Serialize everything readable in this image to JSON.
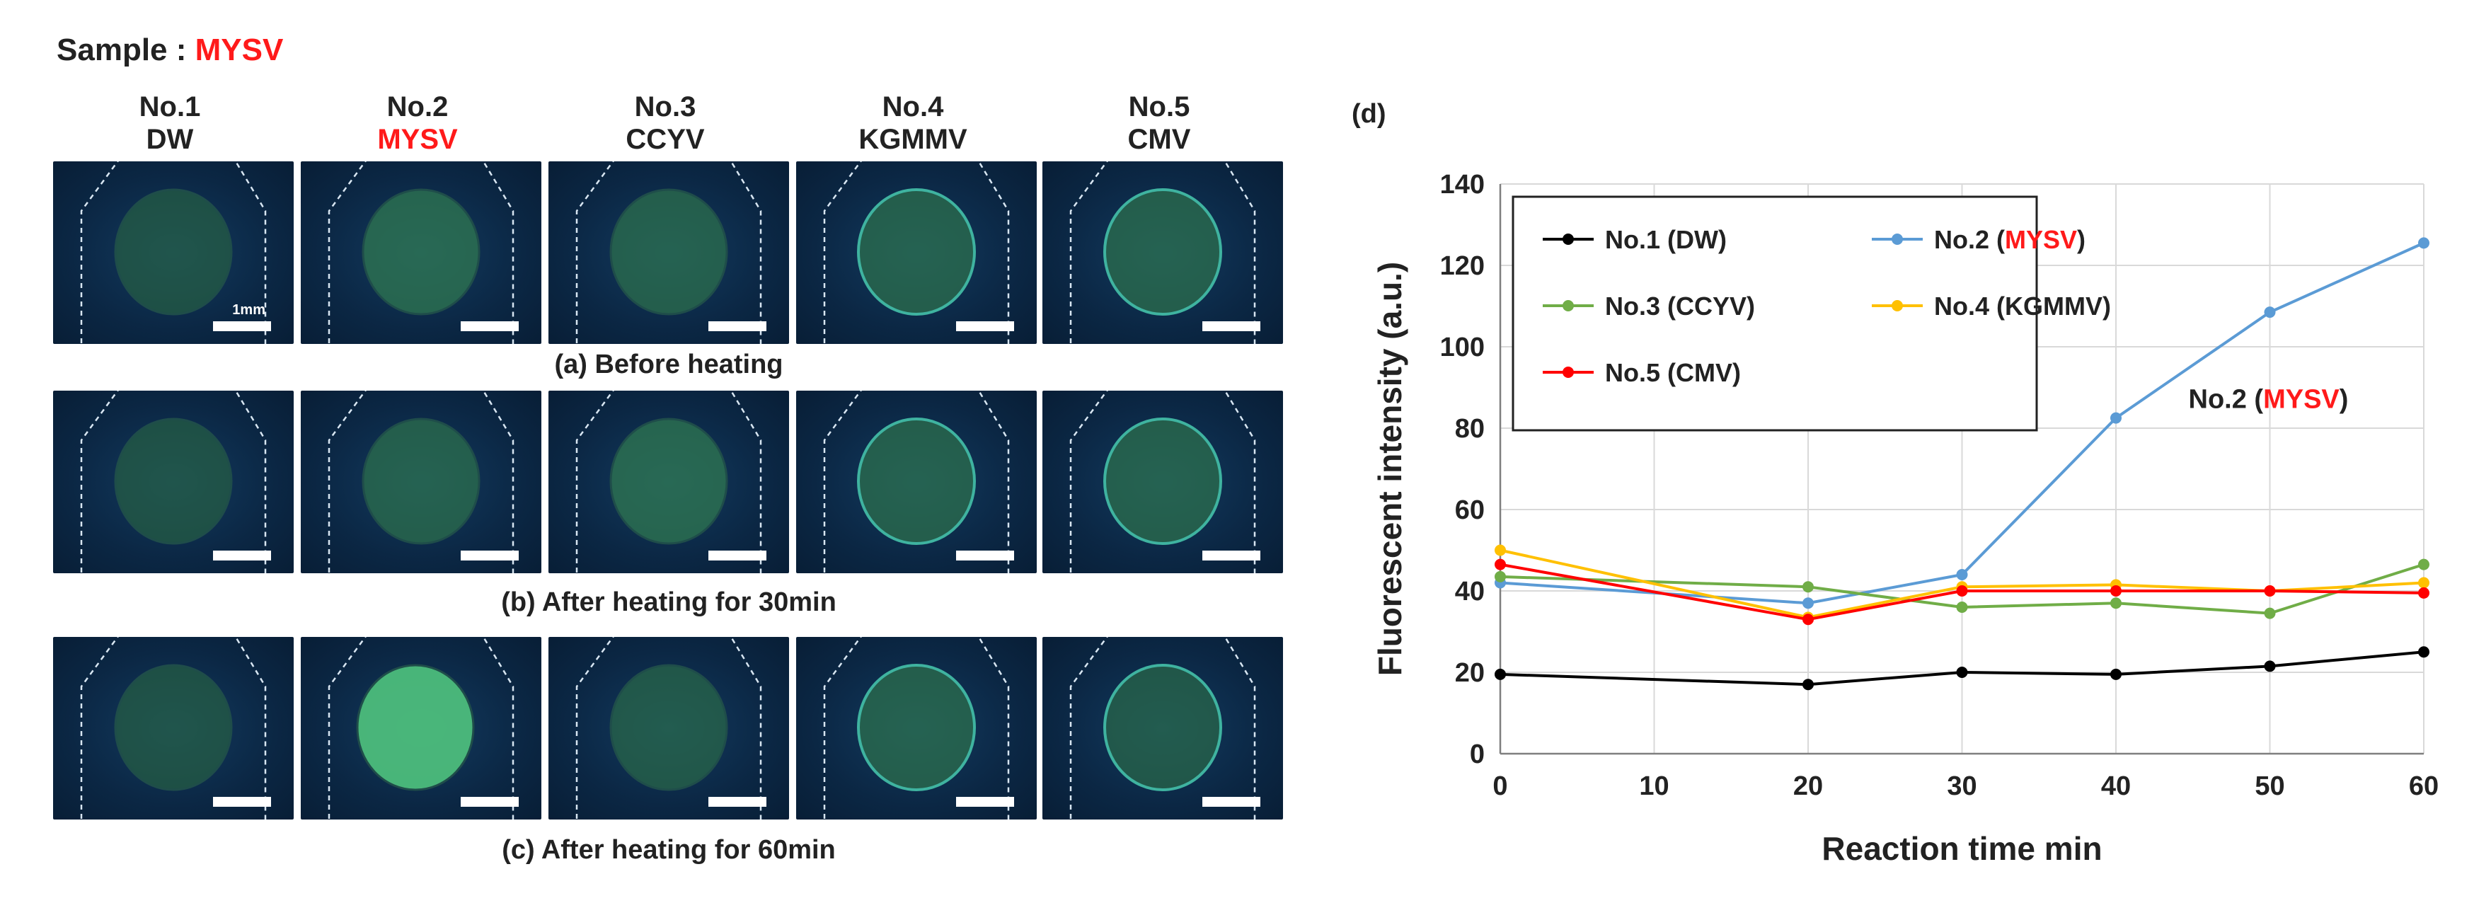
{
  "sample": {
    "label": "Sample : ",
    "value": "MYSV"
  },
  "columns": [
    {
      "no": "No.1",
      "name": "DW",
      "highlight": false
    },
    {
      "no": "No.2",
      "name": "MYSV",
      "highlight": true
    },
    {
      "no": "No.3",
      "name": "CCYV",
      "highlight": false
    },
    {
      "no": "No.4",
      "name": "KGMMV",
      "highlight": false
    },
    {
      "no": "No.5",
      "name": "CMV",
      "highlight": false
    }
  ],
  "scale_label": "1mm",
  "rows": [
    {
      "caption": "(a) Before heating",
      "brightness": [
        0.35,
        0.5,
        0.45,
        0.45,
        0.45
      ]
    },
    {
      "caption": "(b) After heating for 30min",
      "brightness": [
        0.35,
        0.45,
        0.5,
        0.45,
        0.45
      ]
    },
    {
      "caption": "(c) After heating for 60min",
      "brightness": [
        0.35,
        0.95,
        0.4,
        0.45,
        0.4
      ]
    }
  ],
  "panel_label": "(d)",
  "colors": {
    "accent_red": "#ff1a1a",
    "tile_bg": "#0b2744",
    "spot_green": "#3fae7a"
  },
  "chart_data": {
    "type": "line",
    "xlabel": "Reaction time  min",
    "ylabel": "Fluorescent intensity  (a.u.)",
    "xlim": [
      0,
      60
    ],
    "ylim": [
      0,
      140
    ],
    "xticks": [
      0,
      10,
      20,
      30,
      40,
      50,
      60
    ],
    "yticks": [
      0,
      20,
      40,
      60,
      80,
      100,
      120,
      140
    ],
    "grid": true,
    "legend_position": "top-left",
    "x": [
      0,
      20,
      30,
      40,
      50,
      60
    ],
    "series": [
      {
        "name": "No.1 (DW)",
        "label_prefix": "No.1 (",
        "label_virus": "DW",
        "label_suffix": ")",
        "highlight": false,
        "color": "#000000",
        "values": [
          19.5,
          17,
          20,
          19.5,
          21.5,
          25
        ]
      },
      {
        "name": "No.2 (MYSV)",
        "label_prefix": "No.2 (",
        "label_virus": "MYSV",
        "label_suffix": ")",
        "highlight": true,
        "color": "#5b9bd5",
        "values": [
          42,
          37,
          44,
          82.5,
          108.5,
          125.5
        ]
      },
      {
        "name": "No.3 (CCYV)",
        "label_prefix": "No.3 (",
        "label_virus": "CCYV",
        "label_suffix": ")",
        "highlight": false,
        "color": "#70ad47",
        "values": [
          43.5,
          41,
          36,
          37,
          34.5,
          46.5
        ]
      },
      {
        "name": "No.4 (KGMMV)",
        "label_prefix": "No.4 (",
        "label_virus": "KGMMV",
        "label_suffix": ")",
        "highlight": false,
        "color": "#ffc000",
        "values": [
          50,
          33.5,
          41,
          41.5,
          40,
          42
        ]
      },
      {
        "name": "No.5 (CMV)",
        "label_prefix": "No.5 (",
        "label_virus": "CMV",
        "label_suffix": ")",
        "highlight": false,
        "color": "#ff0000",
        "values": [
          46.5,
          33,
          40,
          40,
          40,
          39.5
        ]
      }
    ],
    "annotation": {
      "prefix": "No.2 (",
      "virus": "MYSV",
      "suffix": ")",
      "x": 50,
      "y": 85
    }
  }
}
